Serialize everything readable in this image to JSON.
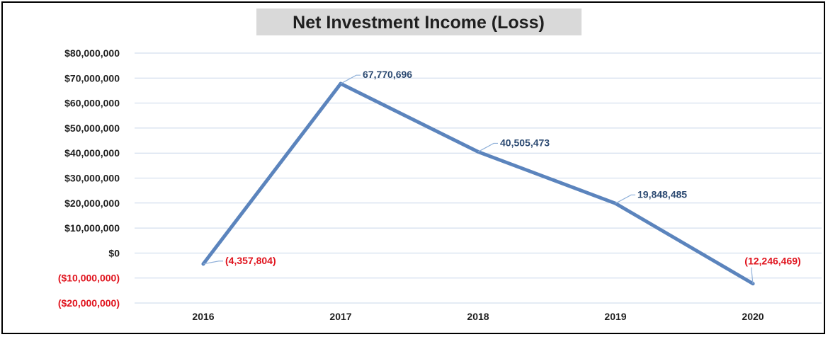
{
  "chart_data": {
    "type": "line",
    "title": "Net Investment Income (Loss)",
    "categories": [
      "2016",
      "2017",
      "2018",
      "2019",
      "2020"
    ],
    "values": [
      -4357804,
      67770696,
      40505473,
      19848485,
      -12246469
    ],
    "data_labels": [
      "(4,357,804)",
      "67,770,696",
      "40,505,473",
      "19,848,485",
      "(12,246,469)"
    ],
    "yticks": [
      {
        "value": 80000000,
        "label": "$80,000,000"
      },
      {
        "value": 70000000,
        "label": "$70,000,000"
      },
      {
        "value": 60000000,
        "label": "$60,000,000"
      },
      {
        "value": 50000000,
        "label": "$50,000,000"
      },
      {
        "value": 40000000,
        "label": "$40,000,000"
      },
      {
        "value": 30000000,
        "label": "$30,000,000"
      },
      {
        "value": 20000000,
        "label": "$20,000,000"
      },
      {
        "value": 10000000,
        "label": "$10,000,000"
      },
      {
        "value": 0,
        "label": "$0"
      },
      {
        "value": -10000000,
        "label": "($10,000,000)"
      },
      {
        "value": -20000000,
        "label": "($20,000,000)"
      }
    ],
    "ylim": [
      -20000000,
      80000000
    ],
    "grid": true,
    "legend": "none",
    "colors": {
      "line": "#5b84bd",
      "negative_text": "#e0141e",
      "label_text": "#2c4a72",
      "grid": "#c9d7ea"
    }
  }
}
